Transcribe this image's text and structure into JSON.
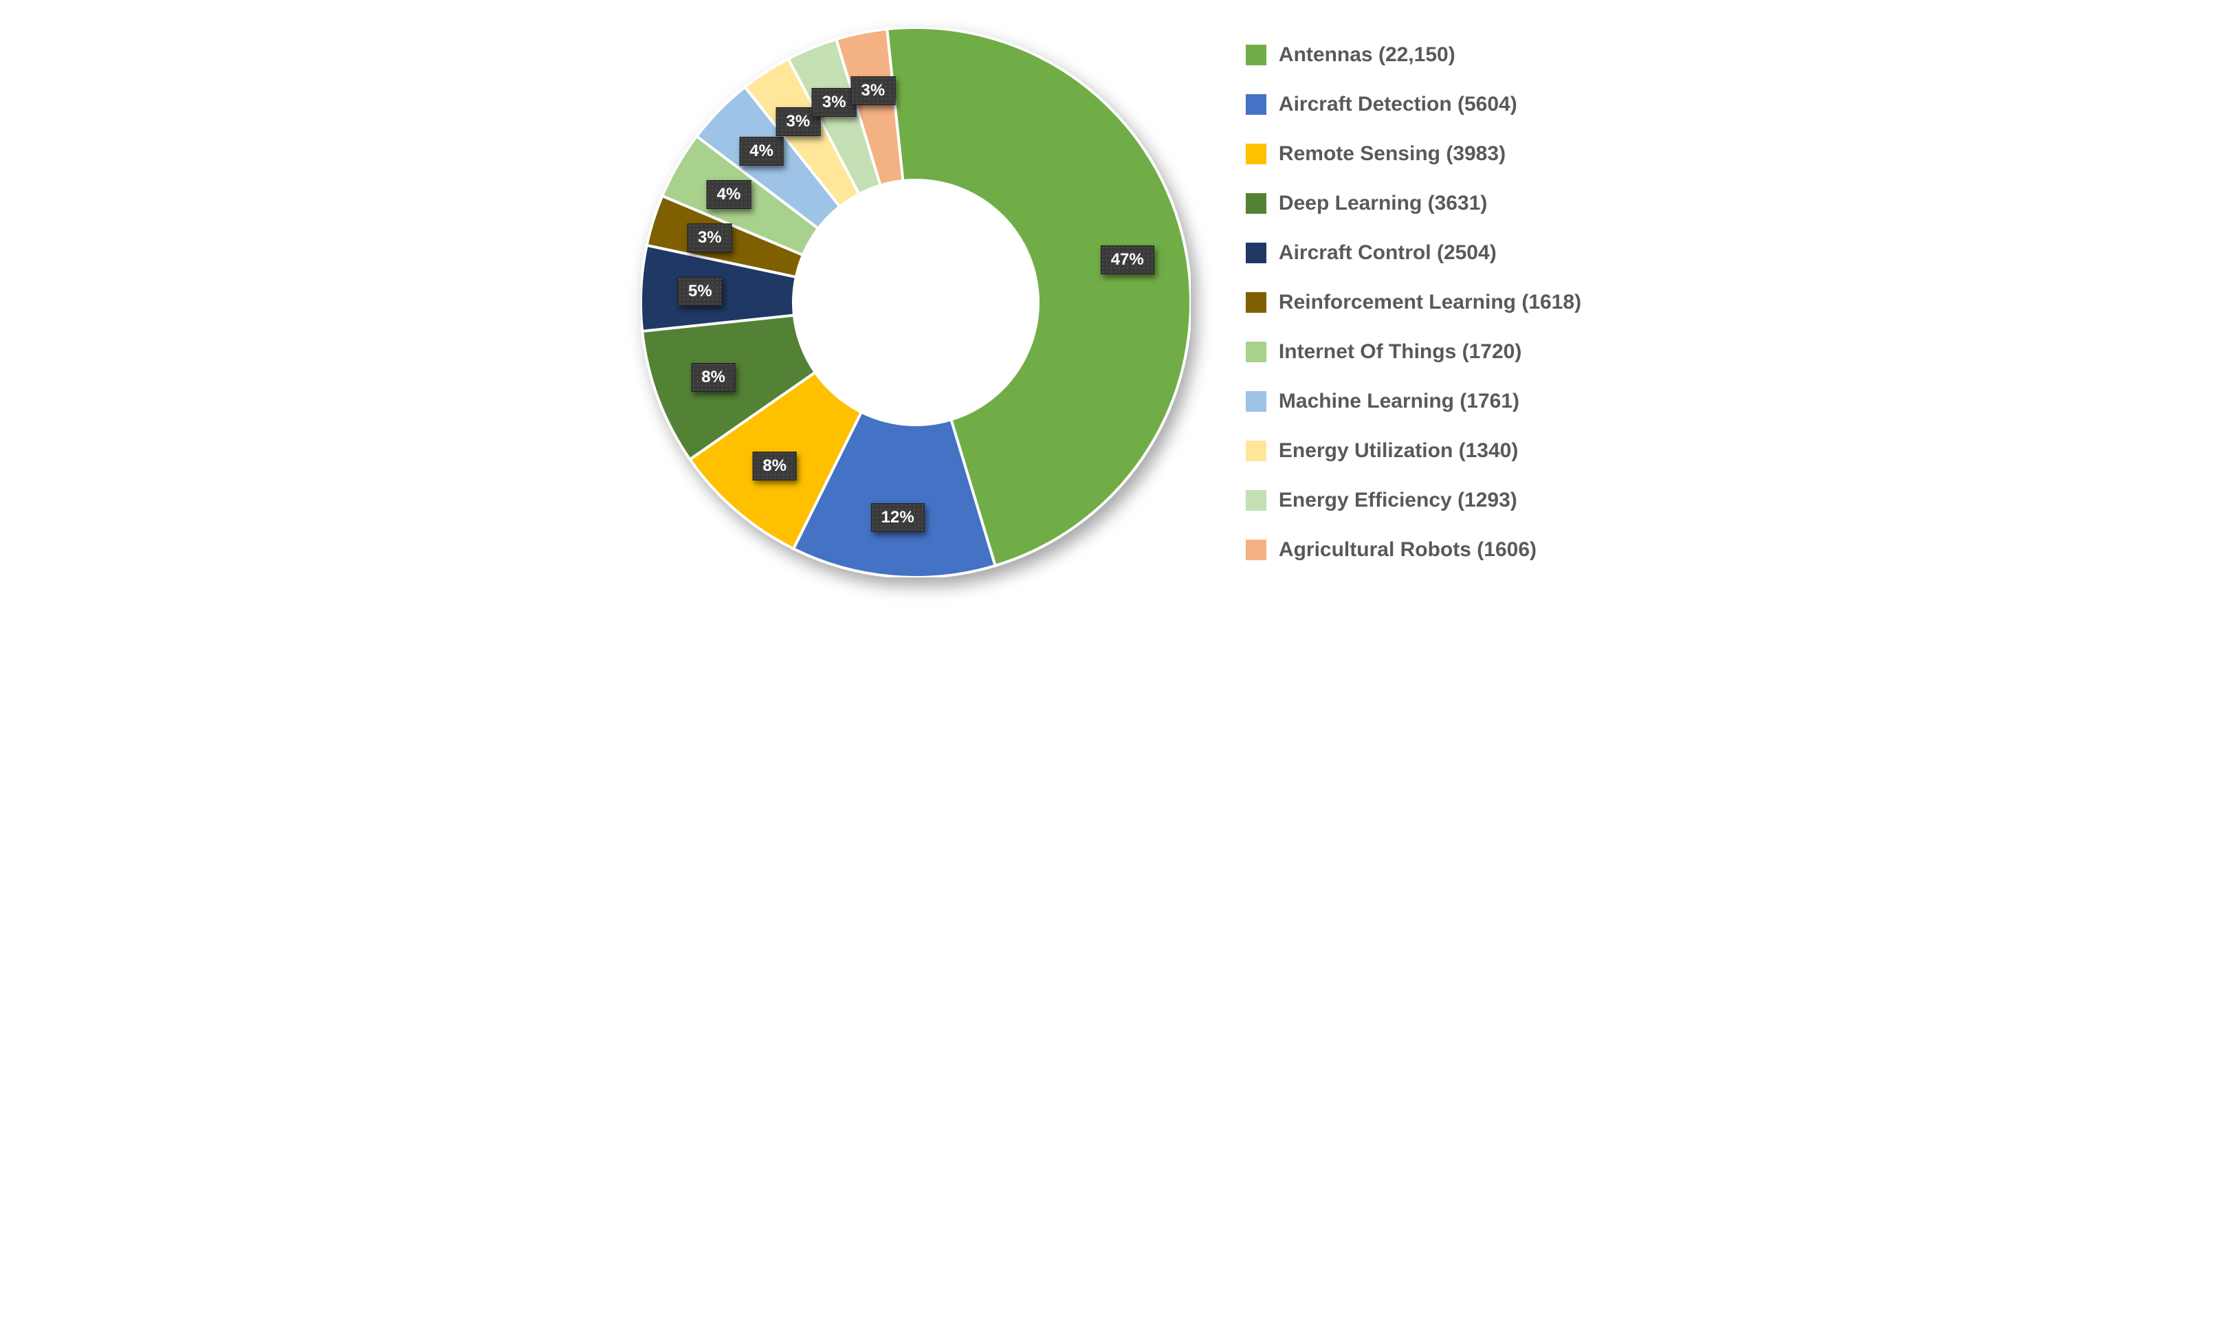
{
  "chart": {
    "type": "donut",
    "background_color": "#ffffff",
    "inner_radius_ratio": 0.45,
    "start_angle": -6,
    "label_bg": "#3a3a3a",
    "label_text_color": "#ffffff",
    "label_fontsize": 24,
    "legend_fontsize": 30,
    "legend_text_color": "#595959",
    "slices": [
      {
        "name": "Antennas",
        "count_display": "22,150",
        "percent": 47,
        "percent_display": "47%",
        "color": "#70ad47"
      },
      {
        "name": "Aircraft Detection",
        "count_display": "5604",
        "percent": 12,
        "percent_display": "12%",
        "color": "#4472c4"
      },
      {
        "name": "Remote Sensing",
        "count_display": "3983",
        "percent": 8,
        "percent_display": "8%",
        "color": "#ffc000"
      },
      {
        "name": "Deep Learning",
        "count_display": "3631",
        "percent": 8,
        "percent_display": "8%",
        "color": "#548235"
      },
      {
        "name": "Aircraft Control",
        "count_display": "2504",
        "percent": 5,
        "percent_display": "5%",
        "color": "#203864"
      },
      {
        "name": "Reinforcement Learning",
        "count_display": "1618",
        "percent": 3,
        "percent_display": "3%",
        "color": "#7f6000"
      },
      {
        "name": "Internet Of Things",
        "count_display": "1720",
        "percent": 4,
        "percent_display": "4%",
        "color": "#a9d18e"
      },
      {
        "name": "Machine Learning",
        "count_display": "1761",
        "percent": 4,
        "percent_display": "4%",
        "color": "#9dc3e6"
      },
      {
        "name": "Energy Utilization",
        "count_display": "1340",
        "percent": 3,
        "percent_display": "3%",
        "color": "#ffe699"
      },
      {
        "name": "Energy Efficiency",
        "count_display": "1293",
        "percent": 3,
        "percent_display": "3%",
        "color": "#c5e0b4"
      },
      {
        "name": "Agricultural Robots",
        "count_display": "1606",
        "percent": 3,
        "percent_display": "3%",
        "color": "#f4b183"
      }
    ]
  }
}
